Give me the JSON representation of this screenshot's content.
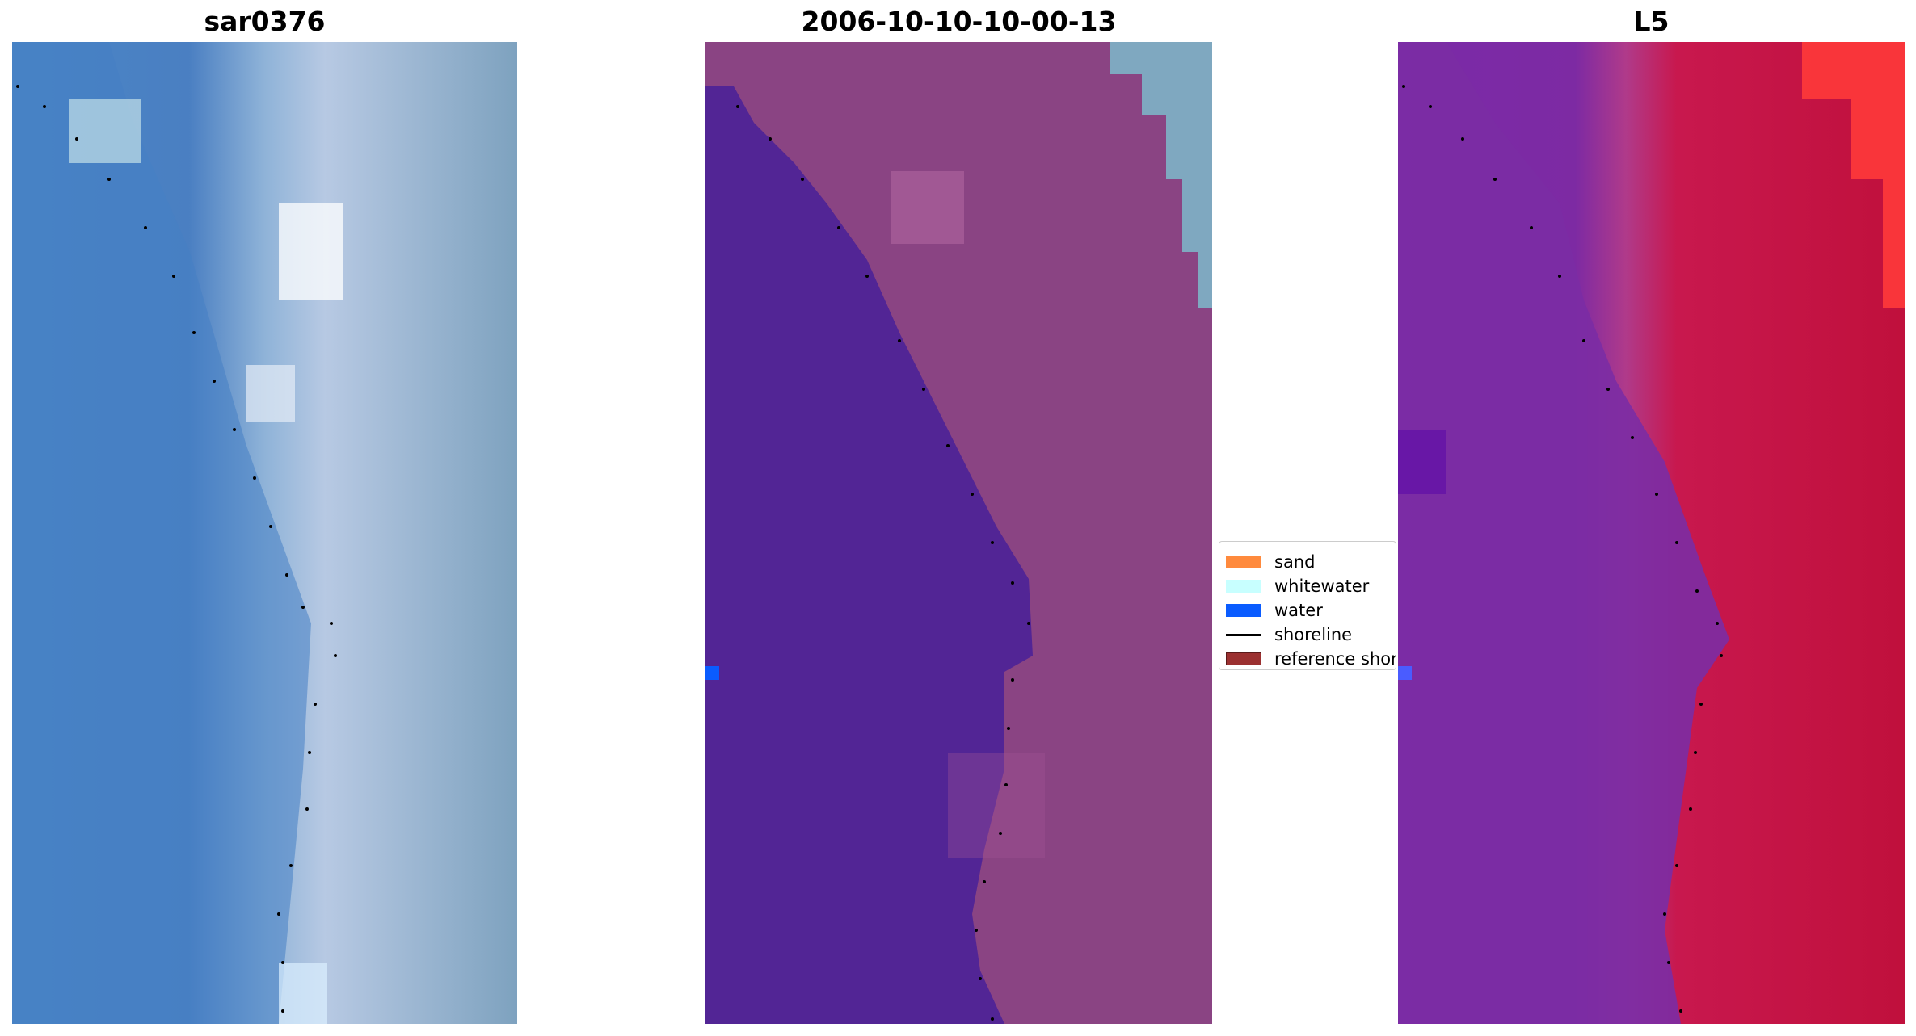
{
  "panels": [
    {
      "title": "sar0376"
    },
    {
      "title": "2006-10-10-10-00-13"
    },
    {
      "title": "L5"
    }
  ],
  "legend": {
    "items": [
      {
        "label": "sand",
        "color": "#ff8a3d",
        "kind": "patch"
      },
      {
        "label": "whitewater",
        "color": "#c8ffff",
        "kind": "patch"
      },
      {
        "label": "water",
        "color": "#0a5cff",
        "kind": "patch"
      },
      {
        "label": "shoreline",
        "color": "#000000",
        "kind": "line"
      },
      {
        "label": "reference shoreline",
        "color": "#9b3030",
        "kind": "patch"
      }
    ]
  },
  "colors": {
    "rgb_water": "#4a80c0",
    "rgb_beach": "#b8cde0",
    "classified_water": "#522595",
    "classified_land": "#8a4483",
    "classified_whitewater_teal": "#7fa8c0",
    "false_color_water": "#7c2aa8",
    "false_color_land": "#c01040",
    "shoreline_marker": "#000000"
  }
}
